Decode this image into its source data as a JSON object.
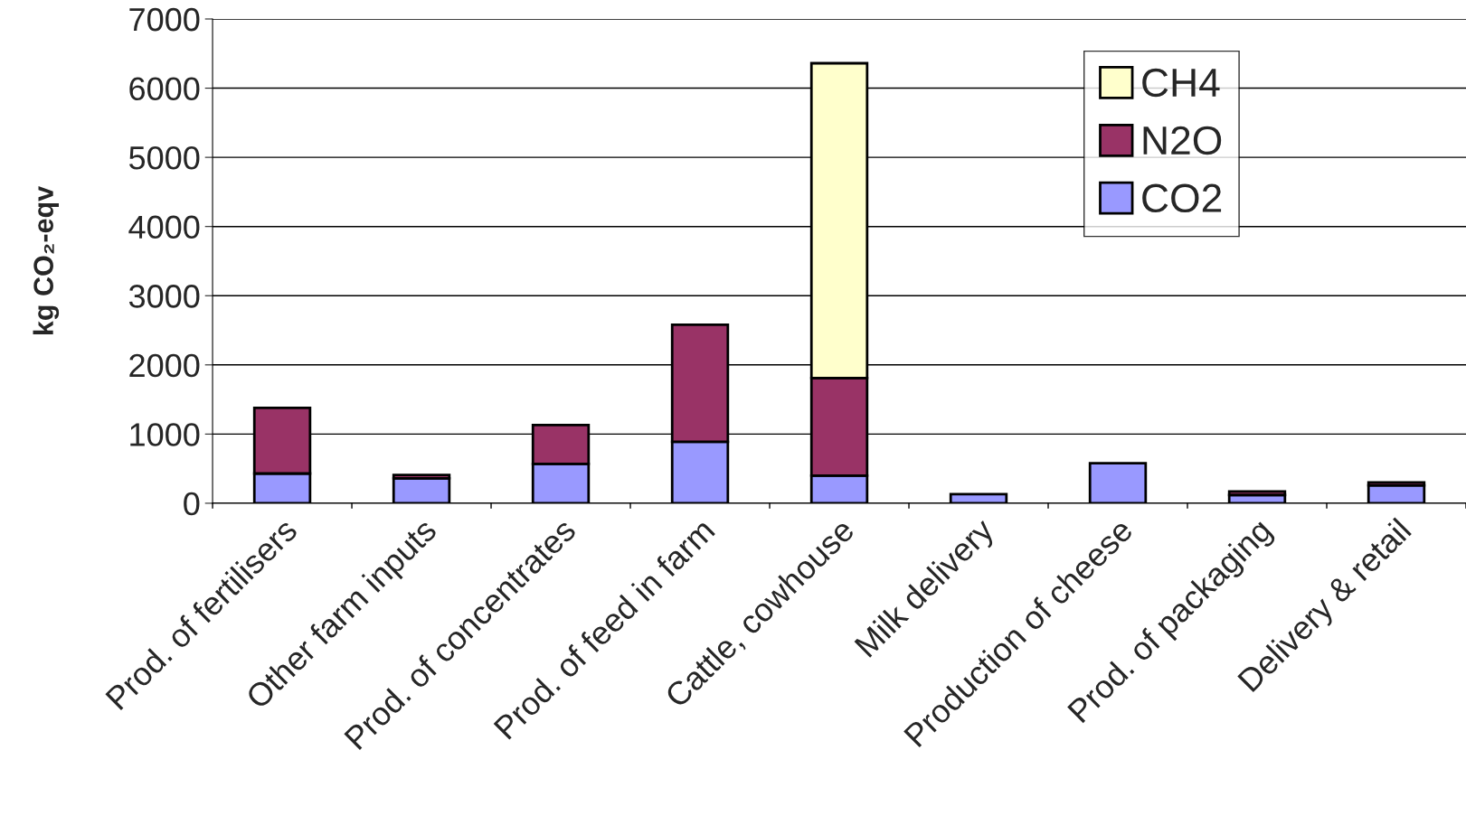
{
  "chart_data": {
    "type": "bar",
    "stacked": true,
    "ylabel": "kg CO₂-eqv",
    "categories": [
      "Prod. of fertilisers",
      "Other farm inputs",
      "Prod. of concentrates",
      "Prod. of feed in farm",
      "Cattle, cowhouse",
      "Milk delivery",
      "Production of cheese",
      "Prod. of packaging",
      "Delivery & retail"
    ],
    "series": [
      {
        "name": "CO2",
        "color": "#9999ff",
        "values": [
          430,
          360,
          570,
          890,
          400,
          130,
          580,
          120,
          260
        ]
      },
      {
        "name": "N2O",
        "color": "#993366",
        "values": [
          950,
          50,
          560,
          1690,
          1410,
          null,
          null,
          50,
          40
        ]
      },
      {
        "name": "CH4",
        "color": "#ffffcc",
        "values": [
          null,
          null,
          null,
          null,
          4550,
          null,
          null,
          null,
          null
        ]
      }
    ],
    "ylim": [
      0,
      7000
    ],
    "yticks": [
      0,
      1000,
      2000,
      3000,
      4000,
      5000,
      6000,
      7000
    ],
    "grid": "y",
    "legend": "top right"
  }
}
